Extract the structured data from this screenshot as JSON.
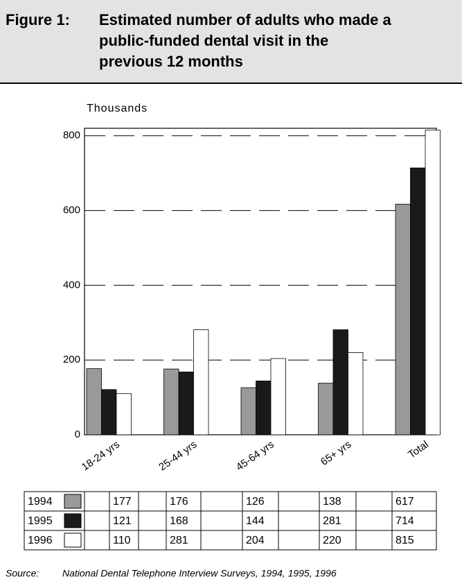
{
  "chart_data": {
    "type": "bar",
    "figure_label": "Figure 1:",
    "title": [
      "Estimated number of adults who made a",
      "public-funded dental visit in the",
      "previous 12 months"
    ],
    "y_label": "Thousands",
    "categories": [
      "18-24 yrs",
      "25-44 yrs",
      "45-64 yrs",
      "65+ yrs",
      "Total"
    ],
    "series": [
      {
        "name": "1994",
        "color": "#999999",
        "values": [
          177,
          176,
          126,
          138,
          617
        ]
      },
      {
        "name": "1995",
        "color": "#1a1a1a",
        "values": [
          121,
          168,
          144,
          281,
          714
        ]
      },
      {
        "name": "1996",
        "color": "#ffffff",
        "values": [
          110,
          281,
          204,
          220,
          815
        ]
      }
    ],
    "ylim": [
      0,
      820
    ],
    "yticks": [
      0,
      200,
      400,
      600,
      800
    ],
    "grid": true,
    "source_label": "Source:",
    "source": "National Dental Telephone Interview Surveys, 1994, 1995, 1996"
  }
}
